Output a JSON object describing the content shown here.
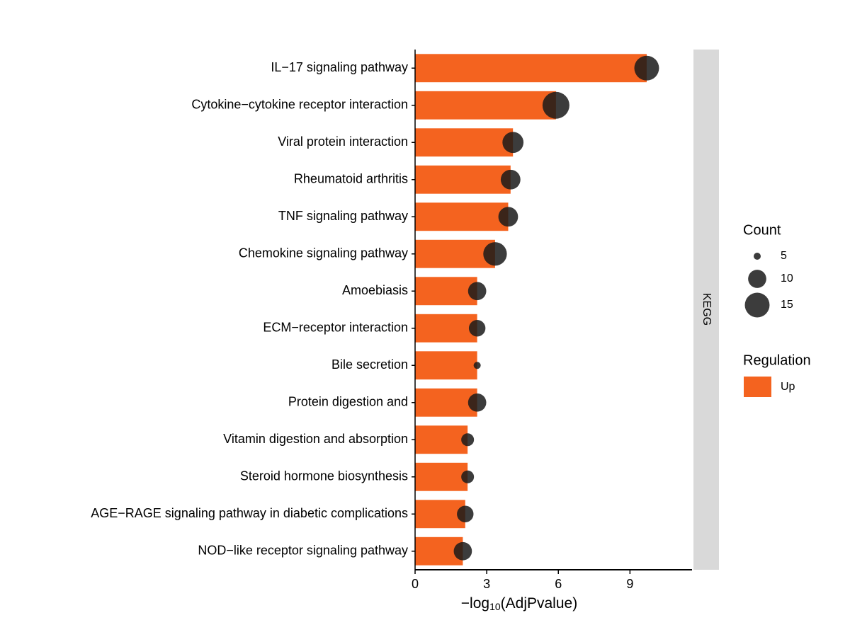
{
  "chart_data": {
    "type": "bar_bubble",
    "categories": [
      "IL−17 signaling pathway",
      "Cytokine−cytokine receptor interaction",
      "Viral protein interaction",
      "Rheumatoid arthritis",
      "TNF signaling pathway",
      "Chemokine signaling pathway",
      "Amoebiasis",
      "ECM−receptor interaction",
      "Bile secretion",
      "Protein digestion and",
      "Vitamin digestion and absorption",
      "Steroid hormone biosynthesis",
      "AGE−RAGE signaling pathway in diabetic complications",
      "NOD−like receptor signaling pathway"
    ],
    "values": [
      9.7,
      5.9,
      4.1,
      4.0,
      3.9,
      3.35,
      2.6,
      2.6,
      2.6,
      2.6,
      2.2,
      2.2,
      2.1,
      2.0
    ],
    "sizes": [
      15,
      17,
      12,
      11,
      11,
      14,
      10,
      9,
      5,
      10,
      7,
      7,
      9,
      10
    ],
    "color": "#F4631F",
    "bubble_color": "#1a1a1a",
    "xlim": [
      0,
      11.6
    ],
    "xticks": [
      0,
      3,
      6,
      9
    ],
    "xlabel": {
      "prefix": "−log",
      "sub": "10",
      "suffix": "(AdjPvalue)"
    },
    "facet": "KEGG",
    "size_legend": {
      "title": "Count",
      "values": [
        5,
        10,
        15
      ]
    },
    "color_legend": {
      "title": "Regulation",
      "entries": [
        "Up"
      ]
    }
  }
}
